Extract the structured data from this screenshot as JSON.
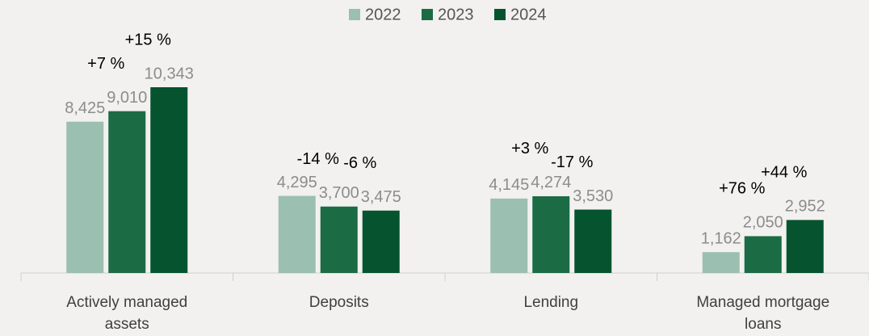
{
  "chart_data": {
    "type": "bar",
    "categories": [
      "Actively managed assets",
      "Deposits",
      "Lending",
      "Managed mortgage loans"
    ],
    "series": [
      {
        "name": "2022",
        "color": "#9bbfb0",
        "values": [
          8425,
          4295,
          4145,
          1162
        ],
        "value_labels": [
          "8,425",
          "4,295",
          "4,145",
          "1,162"
        ]
      },
      {
        "name": "2023",
        "color": "#1b6b45",
        "values": [
          9010,
          3700,
          4274,
          2050
        ],
        "value_labels": [
          "9,010",
          "3,700",
          "4,274",
          "2,050"
        ]
      },
      {
        "name": "2024",
        "color": "#06532f",
        "values": [
          10343,
          3475,
          3530,
          2952
        ],
        "value_labels": [
          "10,343",
          "3,475",
          "3,530",
          "2,952"
        ]
      }
    ],
    "annotations": [
      [
        "+7 %",
        "+15 %"
      ],
      [
        "-14 %",
        "-6 %"
      ],
      [
        "+3 %",
        "-17 %"
      ],
      [
        "+76 %",
        "+44 %"
      ]
    ],
    "legend": "top"
  }
}
